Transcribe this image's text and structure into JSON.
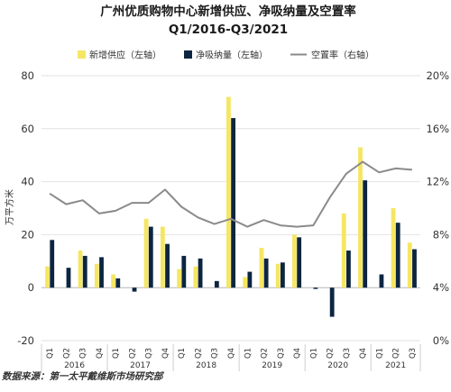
{
  "chart_data": {
    "type": "bar",
    "title_line1": "广州优质购物中心新增供应、净吸纳量及空置率",
    "title_line2": "Q1/2016-Q3/2021",
    "ylabel": "万平方米",
    "source": "数据来源：第一太平戴维斯市场研究部",
    "ylim": [
      -20,
      80
    ],
    "yticks": [
      -20,
      0,
      20,
      40,
      60,
      80
    ],
    "y2lim": [
      0,
      20
    ],
    "y2ticks": [
      "0%",
      "4%",
      "8%",
      "12%",
      "16%",
      "20%"
    ],
    "grid": true,
    "legend_position": "top",
    "quarters": [
      "Q1",
      "Q2",
      "Q3",
      "Q4",
      "Q1",
      "Q2",
      "Q3",
      "Q4",
      "Q1",
      "Q2",
      "Q3",
      "Q4",
      "Q1",
      "Q2",
      "Q3",
      "Q4",
      "Q1",
      "Q2",
      "Q3",
      "Q4",
      "Q1",
      "Q2",
      "Q3"
    ],
    "years": [
      {
        "label": "2016",
        "start": 0,
        "end": 3
      },
      {
        "label": "2017",
        "start": 4,
        "end": 7
      },
      {
        "label": "2018",
        "start": 8,
        "end": 11
      },
      {
        "label": "2019",
        "start": 12,
        "end": 15
      },
      {
        "label": "2020",
        "start": 16,
        "end": 19
      },
      {
        "label": "2021",
        "start": 20,
        "end": 22
      }
    ],
    "series": [
      {
        "name": "新增供应（左轴）",
        "kind": "bar",
        "axis": "left",
        "color": "#f5e663",
        "values": [
          8,
          0,
          14,
          9,
          5,
          0,
          26,
          23,
          7,
          8,
          0,
          72,
          4,
          15,
          9,
          20,
          0,
          0,
          28,
          53,
          0,
          30,
          17
        ]
      },
      {
        "name": "净吸纳量（左轴）",
        "kind": "bar",
        "axis": "left",
        "color": "#0c2541",
        "values": [
          18,
          7.5,
          12,
          11.5,
          3.5,
          -1.5,
          23,
          16.5,
          12,
          11,
          2.5,
          64,
          6,
          11,
          9.5,
          19,
          -0.5,
          -11,
          14,
          40.5,
          5,
          24.5,
          14.5
        ]
      },
      {
        "name": "空置率（右轴）",
        "kind": "line",
        "axis": "right",
        "color": "#8a8a8a",
        "values": [
          11.1,
          10.3,
          10.6,
          9.6,
          9.8,
          10.4,
          10.4,
          11.4,
          10.1,
          9.3,
          8.8,
          9.2,
          8.6,
          9.1,
          8.7,
          8.6,
          8.7,
          10.8,
          12.6,
          13.5,
          12.7,
          13.0,
          12.9
        ]
      }
    ]
  }
}
